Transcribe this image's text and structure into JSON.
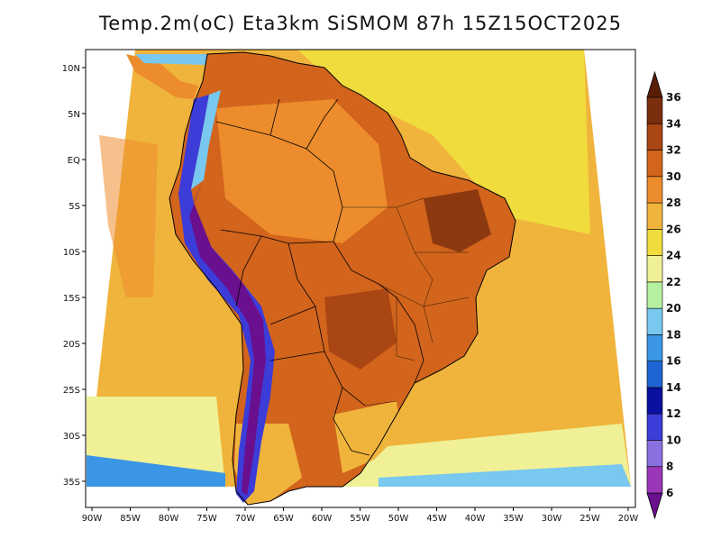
{
  "title": "Temp.2m(oC) Eta3km SiSMOM 87h 15Z15OCT2025",
  "map": {
    "lon_labels": [
      "90W",
      "85W",
      "80W",
      "75W",
      "70W",
      "65W",
      "60W",
      "55W",
      "50W",
      "45W",
      "40W",
      "35W",
      "30W",
      "25W",
      "20W"
    ],
    "lat_labels": [
      "10N",
      "5N",
      "EQ",
      "5S",
      "10S",
      "15S",
      "20S",
      "25S",
      "30S",
      "35S"
    ]
  },
  "colorbar": {
    "levels": [
      "6",
      "8",
      "10",
      "12",
      "14",
      "16",
      "18",
      "20",
      "22",
      "24",
      "26",
      "28",
      "30",
      "32",
      "34",
      "36"
    ],
    "colors": [
      "#6a0f8e",
      "#9b36b8",
      "#8a6fe0",
      "#3c3cd8",
      "#0a10a0",
      "#1e64d2",
      "#3c96e6",
      "#78c8f0",
      "#b4f0a0",
      "#f0f096",
      "#f0dc3c",
      "#f0b43c",
      "#ec8c2c",
      "#d2641c",
      "#aa4614",
      "#7a2e0e",
      "#5a1e08"
    ]
  }
}
